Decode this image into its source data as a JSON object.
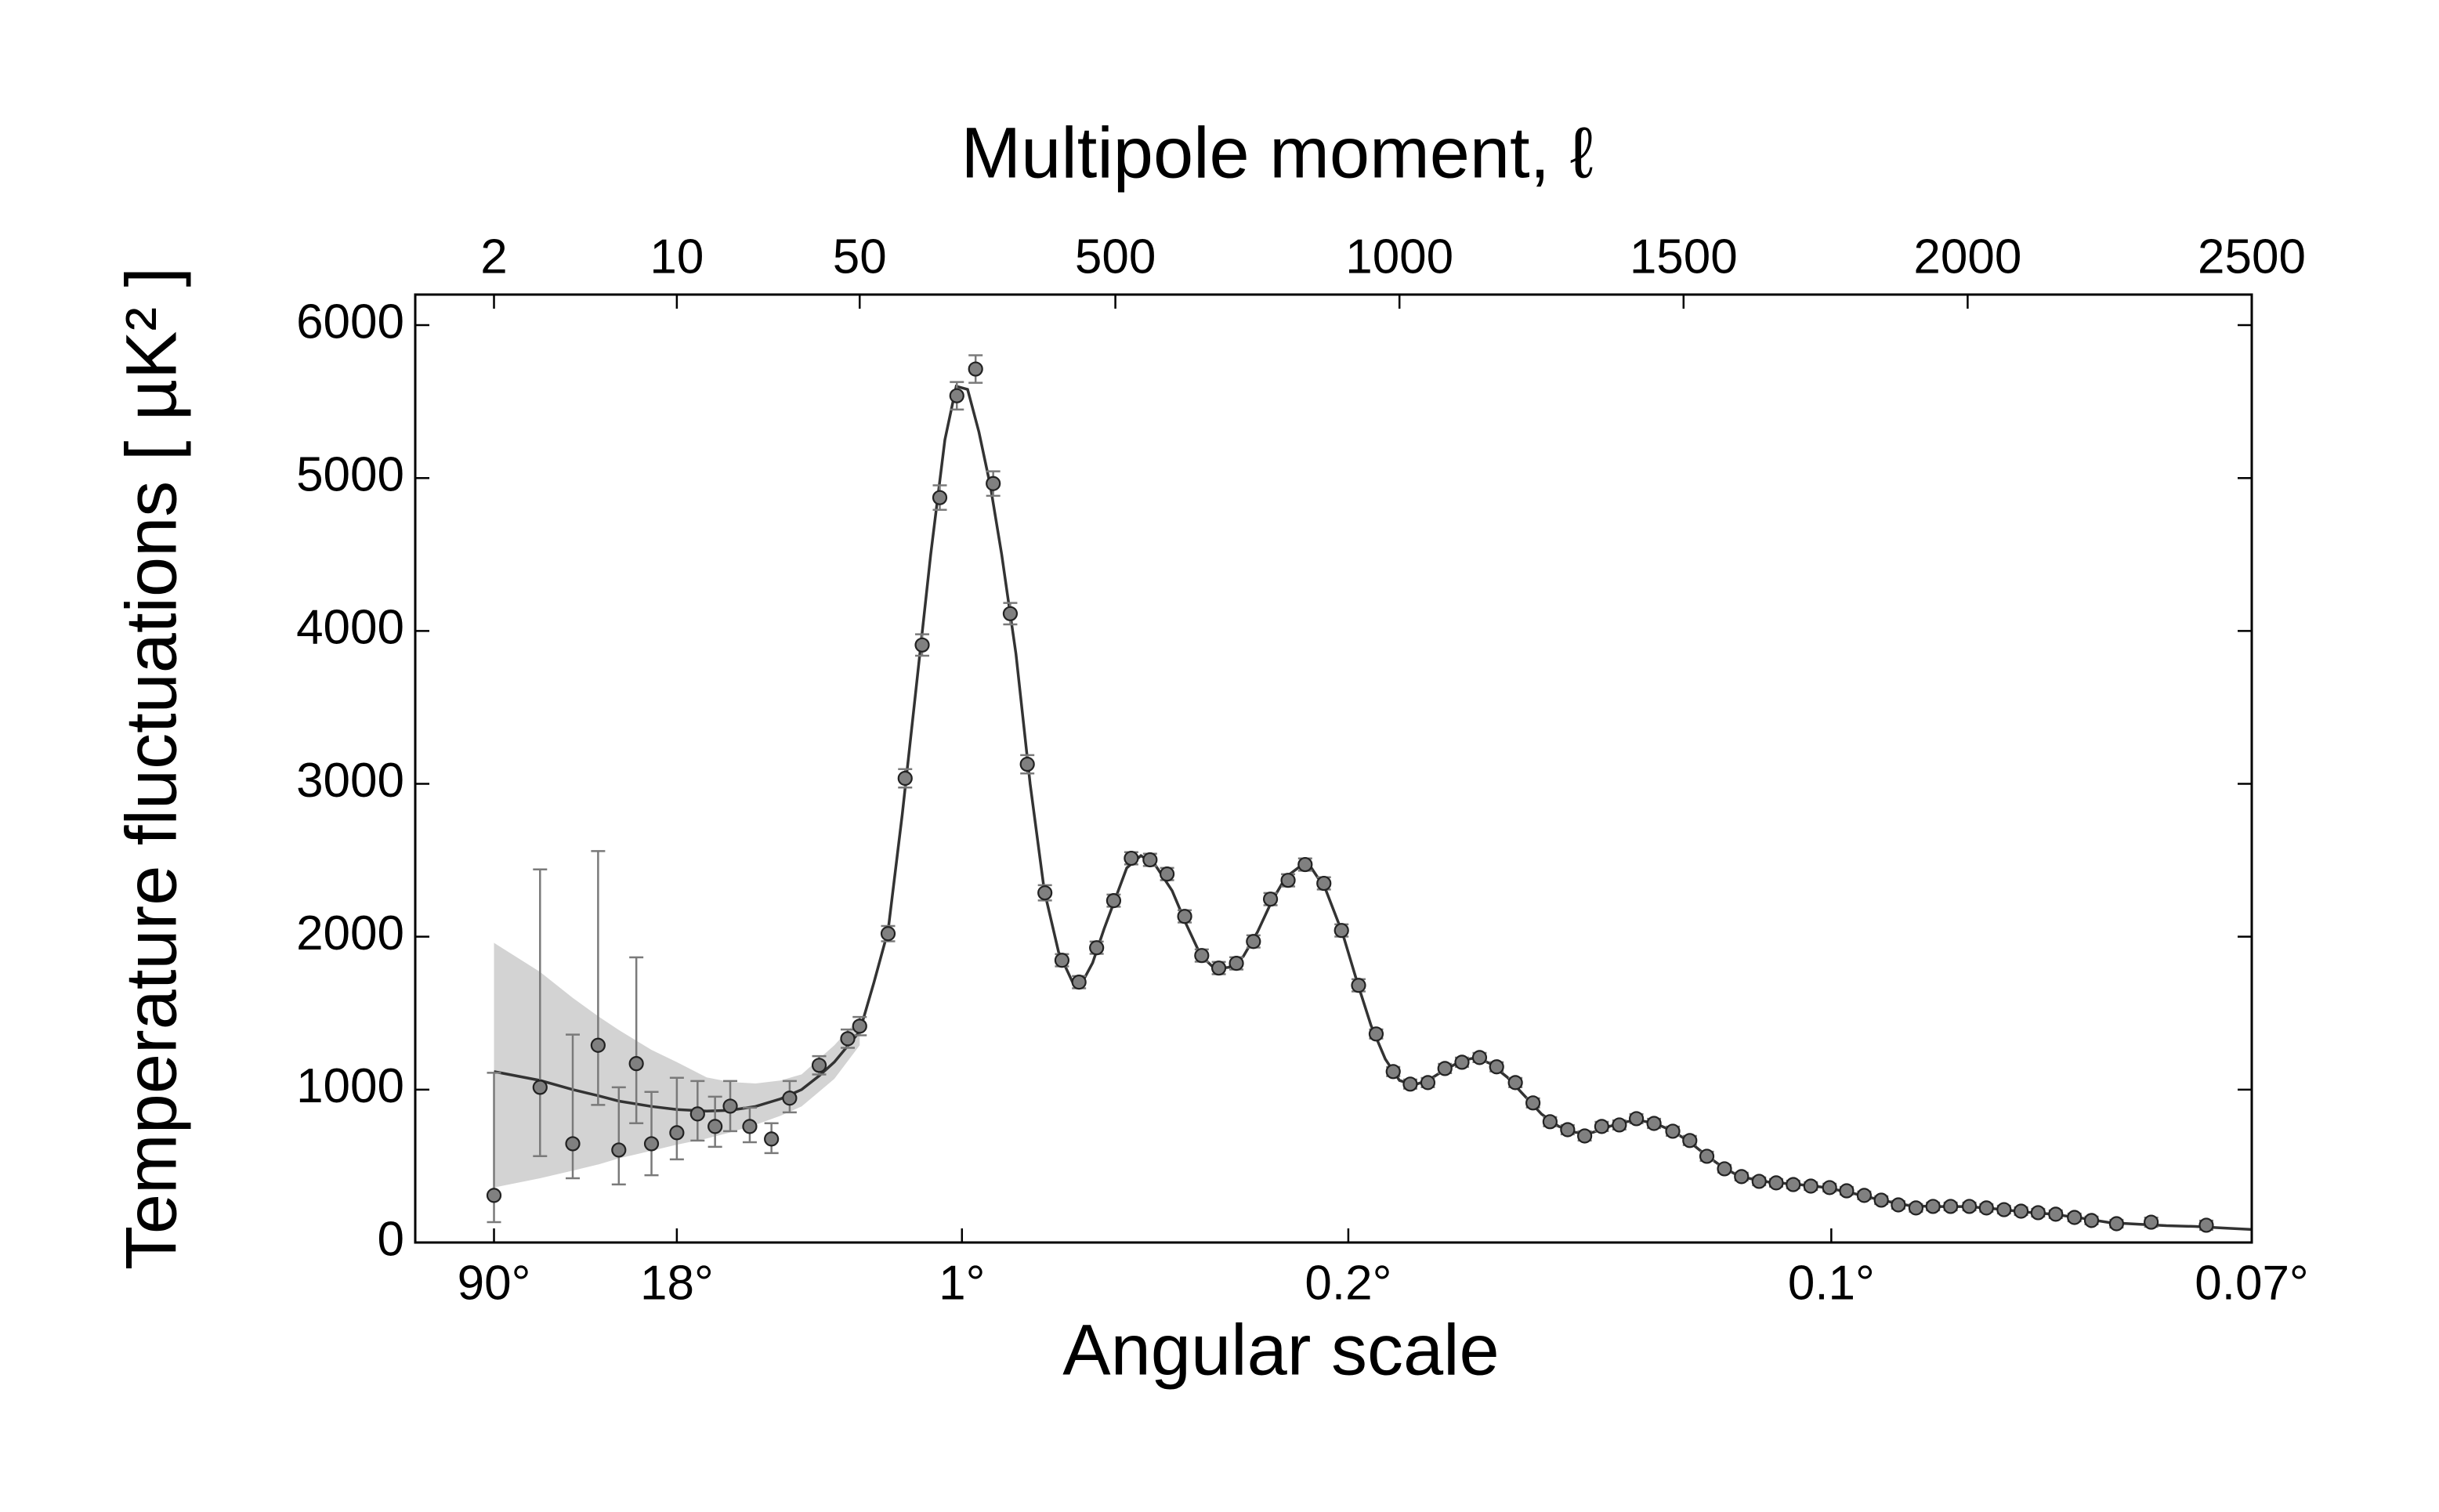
{
  "chart_data": {
    "type": "errorbar",
    "xlabel": "Multipole moment, ℓ",
    "x2label": "Angular scale",
    "ylabel": "Temperature fluctuations [ µK² ]",
    "xscale": "log-linear",
    "xbreak": 50,
    "xlim": [
      1,
      2500
    ],
    "ylim": [
      0,
      6200
    ],
    "xticks": [
      2,
      10,
      50,
      500,
      1000,
      1500,
      2000,
      2500
    ],
    "x2ticks": [
      {
        "value": 2,
        "label": "90°"
      },
      {
        "value": 10,
        "label": "18°"
      },
      {
        "value": 230,
        "label": "1°"
      },
      {
        "value": 910,
        "label": "0.2°"
      },
      {
        "value": 1760,
        "label": "0.1°"
      },
      {
        "value": 2500,
        "label": "0.07°"
      }
    ],
    "yticks": [
      0,
      1000,
      2000,
      3000,
      4000,
      5000,
      6000
    ],
    "band": {
      "color": "#d3d3d3",
      "x": [
        2,
        3,
        4,
        5,
        6,
        8,
        10,
        13,
        16,
        20,
        25,
        30,
        40,
        50
      ],
      "lower": [
        360,
        420,
        470,
        510,
        550,
        600,
        640,
        680,
        720,
        770,
        830,
        890,
        1070,
        1290
      ],
      "upper": [
        1960,
        1770,
        1600,
        1480,
        1390,
        1260,
        1180,
        1080,
        1050,
        1040,
        1060,
        1100,
        1290,
        1470
      ]
    },
    "model": {
      "color": "#333333",
      "x": [
        2,
        3,
        4,
        5,
        6,
        8,
        10,
        13,
        16,
        20,
        25,
        30,
        35,
        40,
        50,
        75,
        100,
        125,
        150,
        175,
        200,
        220,
        240,
        260,
        280,
        300,
        325,
        350,
        375,
        400,
        425,
        440,
        460,
        480,
        500,
        520,
        545,
        570,
        600,
        625,
        650,
        675,
        700,
        725,
        750,
        775,
        800,
        825,
        845,
        870,
        900,
        925,
        950,
        975,
        1000,
        1025,
        1050,
        1080,
        1110,
        1135,
        1160,
        1190,
        1220,
        1250,
        1280,
        1310,
        1340,
        1370,
        1400,
        1420,
        1450,
        1480,
        1510,
        1540,
        1570,
        1600,
        1650,
        1700,
        1750,
        1800,
        1850,
        1900,
        1950,
        2000,
        2050,
        2100,
        2150,
        2200,
        2250,
        2300,
        2350,
        2400,
        2450,
        2500
      ],
      "values": [
        1118,
        1060,
        1000,
        960,
        925,
        890,
        870,
        860,
        865,
        890,
        940,
        1000,
        1090,
        1180,
        1380,
        1700,
        2040,
        2800,
        3650,
        4500,
        5250,
        5600,
        5580,
        5300,
        4950,
        4500,
        3850,
        3000,
        2300,
        1900,
        1700,
        1690,
        1830,
        2050,
        2250,
        2450,
        2530,
        2470,
        2300,
        2080,
        1880,
        1790,
        1800,
        1870,
        2030,
        2230,
        2390,
        2460,
        2450,
        2310,
        2020,
        1710,
        1420,
        1200,
        1060,
        1030,
        1060,
        1130,
        1190,
        1210,
        1170,
        1080,
        960,
        840,
        760,
        720,
        720,
        760,
        790,
        800,
        780,
        730,
        660,
        570,
        490,
        430,
        395,
        380,
        360,
        320,
        275,
        240,
        235,
        235,
        220,
        200,
        185,
        160,
        130,
        120,
        110,
        105,
        95,
        85
      ]
    },
    "data": {
      "color": "#808080",
      "edgecolor": "#222222",
      "errcolor": "#7a7a7a",
      "x": [
        2,
        3,
        4,
        5,
        6,
        7,
        8,
        10,
        12,
        14,
        16,
        19,
        23,
        27,
        35,
        45,
        50,
        100,
        130,
        160,
        191,
        221,
        254,
        285,
        315,
        345,
        376,
        406,
        436,
        467,
        497,
        528,
        561,
        591,
        622,
        652,
        682,
        713,
        743,
        773,
        804,
        834,
        867,
        898,
        928,
        959,
        989,
        1019,
        1050,
        1080,
        1110,
        1141,
        1171,
        1204,
        1235,
        1265,
        1296,
        1326,
        1356,
        1387,
        1417,
        1448,
        1481,
        1511,
        1541,
        1572,
        1602,
        1633,
        1663,
        1693,
        1724,
        1757,
        1787,
        1818,
        1848,
        1878,
        1909,
        1939,
        1970,
        2003,
        2033,
        2064,
        2094,
        2124,
        2155,
        2188,
        2218,
        2262,
        2323,
        2420
      ],
      "values": [
        308,
        1015,
        646,
        1290,
        605,
        1170,
        646,
        718,
        841,
        759,
        892,
        759,
        677,
        944,
        1159,
        1333,
        1415,
        2020,
        3036,
        3908,
        4872,
        5538,
        5713,
        4964,
        4113,
        3128,
        2287,
        1846,
        1703,
        1928,
        2236,
        2513,
        2503,
        2410,
        2133,
        1877,
        1795,
        1826,
        1969,
        2246,
        2369,
        2472,
        2349,
        2041,
        1682,
        1364,
        1118,
        1036,
        1046,
        1138,
        1179,
        1210,
        1149,
        1046,
        913,
        790,
        738,
        697,
        759,
        769,
        810,
        779,
        728,
        667,
        564,
        482,
        431,
        400,
        390,
        379,
        369,
        359,
        338,
        308,
        277,
        246,
        226,
        236,
        236,
        236,
        226,
        215,
        205,
        195,
        185,
        164,
        144,
        123,
        133,
        113
      ],
      "yerr_minus": [
        175,
        450,
        226,
        390,
        225,
        390,
        206,
        174,
        174,
        133,
        164,
        103,
        92,
        93,
        60,
        60,
        60,
        50,
        60,
        70,
        80,
        90,
        90,
        80,
        70,
        60,
        50,
        40,
        40,
        40,
        40,
        40,
        40,
        40,
        40,
        40,
        40,
        40,
        40,
        40,
        40,
        40,
        40,
        40,
        40,
        30,
        30,
        30,
        30,
        30,
        30,
        30,
        30,
        30,
        30,
        30,
        30,
        30,
        30,
        30,
        30,
        30,
        30,
        30,
        30,
        25,
        25,
        25,
        25,
        25,
        25,
        25,
        25,
        25,
        25,
        25,
        25,
        25,
        25,
        25,
        25,
        25,
        25,
        25,
        25,
        25,
        25,
        25,
        30,
        30
      ],
      "yerr_plus": [
        802,
        1425,
        714,
        1270,
        410,
        695,
        339,
        359,
        215,
        195,
        164,
        123,
        103,
        112,
        60,
        60,
        60,
        50,
        60,
        70,
        80,
        90,
        90,
        80,
        70,
        60,
        50,
        40,
        40,
        40,
        40,
        40,
        40,
        40,
        40,
        40,
        40,
        40,
        40,
        40,
        40,
        40,
        40,
        40,
        40,
        30,
        30,
        30,
        30,
        30,
        30,
        30,
        30,
        30,
        30,
        30,
        30,
        30,
        30,
        30,
        30,
        30,
        30,
        30,
        30,
        25,
        25,
        25,
        25,
        25,
        25,
        25,
        25,
        25,
        25,
        25,
        25,
        25,
        25,
        25,
        25,
        25,
        25,
        25,
        25,
        25,
        25,
        25,
        30,
        30
      ]
    }
  }
}
